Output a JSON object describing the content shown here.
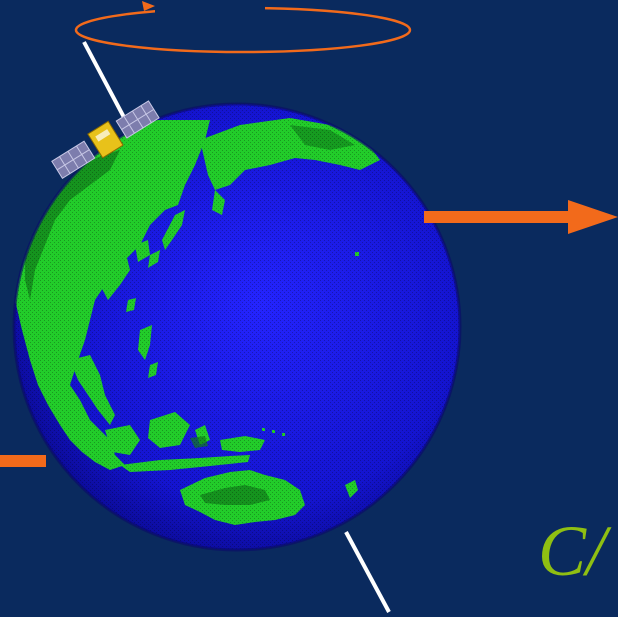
{
  "background_color": "#0a2a5e",
  "colors": {
    "ocean": "#1a1ae6",
    "ocean_dark": "#0a0a8f",
    "land": "#22cc2a",
    "land_dark": "#0f7a1a",
    "arrow_orange": "#f26a1b",
    "axis_white": "#ffffff",
    "satellite_panel": "#8a8ab5",
    "satellite_body": "#e8c21a",
    "label_color": "#8fbf12"
  },
  "label": "C/",
  "icons": [
    "earth-globe",
    "satellite-icon",
    "rotation-ellipse",
    "orange-arrow",
    "spin-axis"
  ]
}
